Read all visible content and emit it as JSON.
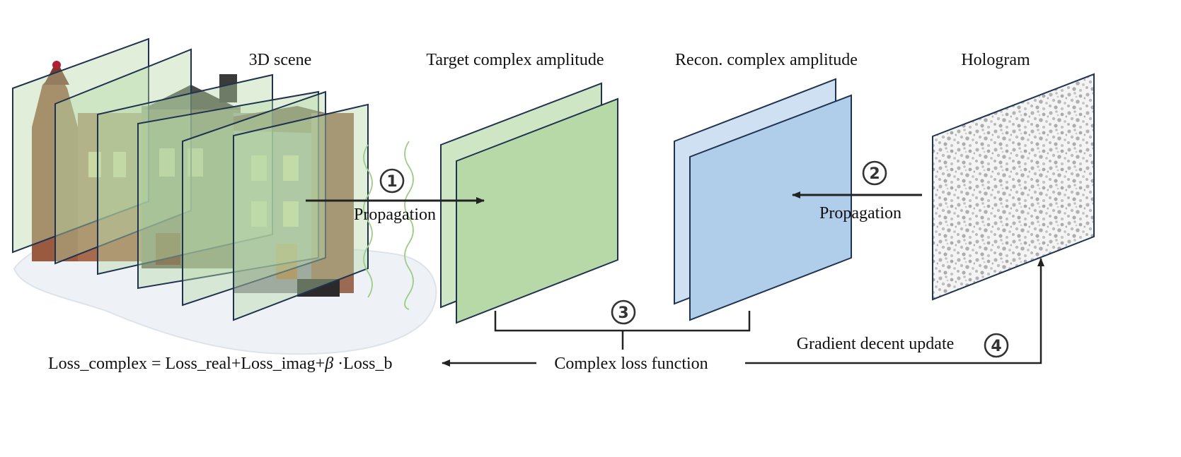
{
  "labels": {
    "scene": "3D scene",
    "target": "Target complex amplitude",
    "recon": "Recon. complex amplitude",
    "hologram": "Hologram",
    "propagation_forward": "Propagation",
    "propagation_backward": "Propagation",
    "gradient": "Gradient decent update",
    "loss_function": "Complex loss function",
    "loss_formula_a": "Loss_complex = Loss_real+Loss_imag+",
    "loss_formula_beta": "β",
    "loss_formula_b": " ·Loss_b"
  },
  "steps": {
    "one": "1",
    "two": "2",
    "three": "3",
    "four": "4"
  },
  "colors": {
    "green_fill": "#b7d9a8",
    "blue_fill": "#b0cdea",
    "frame_stroke": "#1f3350",
    "arrow": "#222222",
    "wave": "#9ccc85",
    "speckle": "#b4b4b4"
  }
}
